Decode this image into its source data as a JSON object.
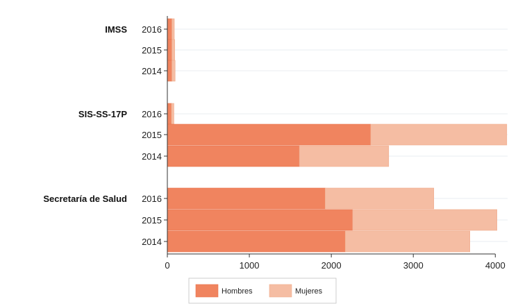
{
  "chart_data": {
    "type": "bar",
    "orientation": "horizontal",
    "stacked": true,
    "x_ticks": [
      0,
      1000,
      2000,
      3000,
      4000
    ],
    "xlim": [
      0,
      4150
    ],
    "grid": true,
    "legend_position": "bottom",
    "groups": [
      {
        "label": "IMSS",
        "rows": [
          {
            "year": "2016",
            "hombres": 55,
            "mujeres": 30
          },
          {
            "year": "2015",
            "hombres": 55,
            "mujeres": 35
          },
          {
            "year": "2014",
            "hombres": 55,
            "mujeres": 40
          }
        ]
      },
      {
        "label": "SIS-SS-17P",
        "rows": [
          {
            "year": "2016",
            "hombres": 50,
            "mujeres": 30
          },
          {
            "year": "2015",
            "hombres": 2480,
            "mujeres": 1660
          },
          {
            "year": "2014",
            "hombres": 1610,
            "mujeres": 1090
          }
        ]
      },
      {
        "label": "Secretaría de Salud",
        "rows": [
          {
            "year": "2016",
            "hombres": 1925,
            "mujeres": 1325
          },
          {
            "year": "2015",
            "hombres": 2260,
            "mujeres": 1760
          },
          {
            "year": "2014",
            "hombres": 2170,
            "mujeres": 1520
          }
        ]
      }
    ],
    "series": [
      {
        "name": "Hombres",
        "key": "hombres",
        "color": "#f0845f"
      },
      {
        "name": "Mujeres",
        "key": "mujeres",
        "color": "#f5bda3"
      }
    ]
  }
}
